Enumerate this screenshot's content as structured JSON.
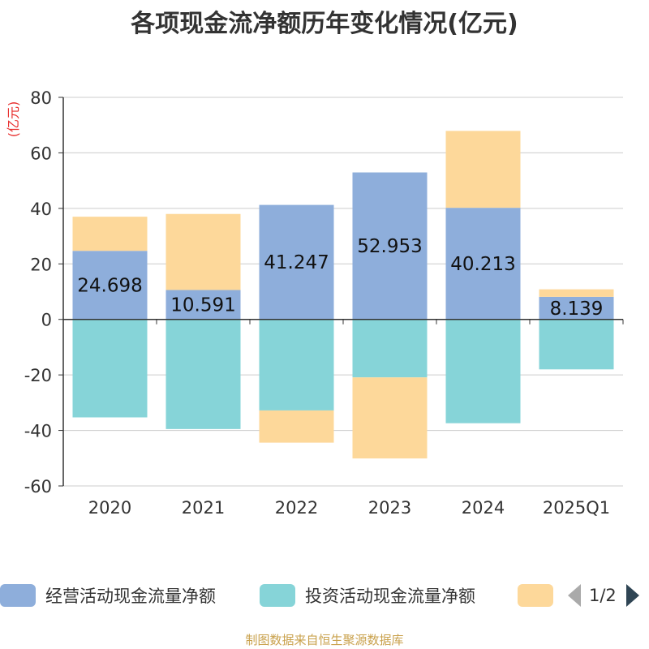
{
  "colors": {
    "operating": "#8eaedb",
    "investing": "#86d4d8",
    "financing": "#fdd89a",
    "unit": "#e8302f",
    "source": "#c9a14c",
    "axis": "#333333",
    "grid": "#cccccc"
  },
  "chart_data": {
    "type": "bar",
    "stacked": true,
    "title": "各项现金流净额历年变化情况(亿元)",
    "ylabel": "(亿元)",
    "ylim": [
      -60,
      80
    ],
    "yticks": [
      80,
      60,
      40,
      20,
      0,
      -20,
      -40,
      -60
    ],
    "grid": true,
    "legend_position": "bottom",
    "categories": [
      "2020",
      "2021",
      "2022",
      "2023",
      "2024",
      "2025Q1"
    ],
    "series": [
      {
        "name": "经营活动现金流量净额",
        "color": "#8eaedb",
        "values": [
          24.698,
          10.591,
          41.247,
          52.953,
          40.213,
          8.139
        ],
        "labels": [
          "24.698",
          "10.591",
          "41.247",
          "52.953",
          "40.213",
          "8.139"
        ]
      },
      {
        "name": "投资活动现金流量净额",
        "color": "#86d4d8",
        "values": [
          -35.3,
          -39.5,
          -32.8,
          -20.9,
          -37.4,
          -18.0
        ]
      },
      {
        "name": "",
        "color": "#fdd89a",
        "values": [
          12.3,
          27.4,
          -11.6,
          -29.2,
          27.7,
          2.7
        ]
      }
    ]
  },
  "legend": {
    "items": [
      "经营活动现金流量净额",
      "投资活动现金流量净额",
      ""
    ],
    "page": "1/2"
  },
  "source": "制图数据来自恒生聚源数据库"
}
